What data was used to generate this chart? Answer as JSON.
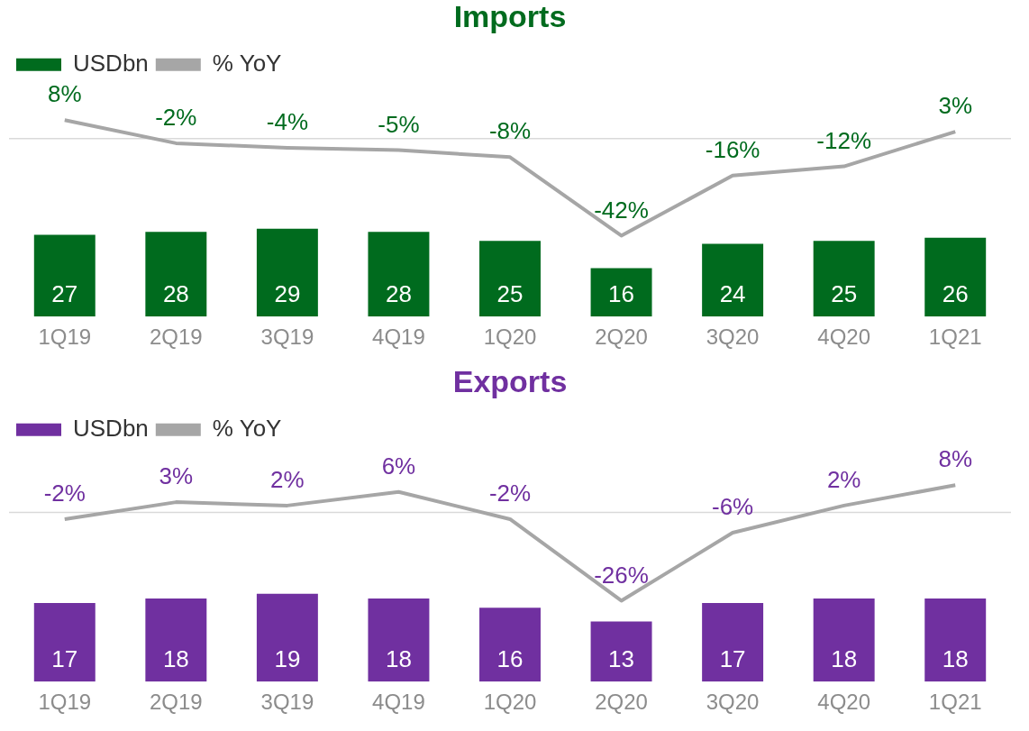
{
  "chart_data": [
    {
      "type": "bar",
      "title": "Imports",
      "categories": [
        "1Q19",
        "2Q19",
        "3Q19",
        "4Q19",
        "1Q20",
        "2Q20",
        "3Q20",
        "4Q20",
        "1Q21"
      ],
      "legend": "top left",
      "grid": false,
      "ref_lines": [
        {
          "axis": "y2",
          "value": 0,
          "color": "#d9d9d9"
        }
      ],
      "series": [
        {
          "name": "USDbn",
          "color": "#006b1e",
          "values": [
            27,
            28,
            29,
            28,
            25,
            16,
            24,
            25,
            26
          ],
          "value_labels": [
            "27",
            "28",
            "29",
            "28",
            "25",
            "16",
            "24",
            "25",
            "26"
          ]
        },
        {
          "name": "% YoY",
          "type": "line",
          "axis": "y2",
          "color": "#a6a6a6",
          "marker": "none",
          "values": [
            8,
            -2,
            -4,
            -5,
            -8,
            -42,
            -16,
            -12,
            3
          ],
          "value_labels": [
            "8%",
            "-2%",
            "-4%",
            "-5%",
            "-8%",
            "-42%",
            "-16%",
            "-12%",
            "3%"
          ]
        }
      ]
    },
    {
      "type": "bar",
      "title": "Exports",
      "categories": [
        "1Q19",
        "2Q19",
        "3Q19",
        "4Q19",
        "1Q20",
        "2Q20",
        "3Q20",
        "4Q20",
        "1Q21"
      ],
      "legend": "top left",
      "grid": false,
      "ref_lines": [
        {
          "axis": "y2",
          "value": 0,
          "color": "#d9d9d9"
        }
      ],
      "series": [
        {
          "name": "USDbn",
          "color": "#7030a0",
          "values": [
            17,
            18,
            19,
            18,
            16,
            13,
            17,
            18,
            18
          ],
          "value_labels": [
            "17",
            "18",
            "19",
            "18",
            "16",
            "13",
            "17",
            "18",
            "18"
          ]
        },
        {
          "name": "% YoY",
          "type": "line",
          "axis": "y2",
          "color": "#a6a6a6",
          "marker": "none",
          "values": [
            -2,
            3,
            2,
            6,
            -2,
            -26,
            -6,
            2,
            8
          ],
          "value_labels": [
            "-2%",
            "3%",
            "2%",
            "6%",
            "-2%",
            "-26%",
            "-6%",
            "2%",
            "8%"
          ]
        }
      ]
    }
  ]
}
